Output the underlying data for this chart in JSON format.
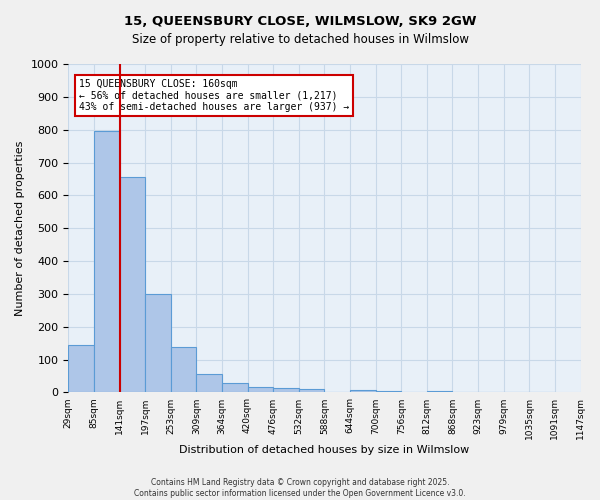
{
  "title": "15, QUEENSBURY CLOSE, WILMSLOW, SK9 2GW",
  "subtitle": "Size of property relative to detached houses in Wilmslow",
  "xlabel": "Distribution of detached houses by size in Wilmslow",
  "ylabel": "Number of detached properties",
  "bar_values": [
    143,
    795,
    655,
    300,
    138,
    55,
    30,
    18,
    15,
    12,
    0,
    8,
    5,
    0,
    5,
    0,
    0,
    0,
    0
  ],
  "bin_labels": [
    "29sqm",
    "85sqm",
    "141sqm",
    "197sqm",
    "253sqm",
    "309sqm",
    "364sqm",
    "420sqm",
    "476sqm",
    "532sqm",
    "588sqm",
    "644sqm",
    "700sqm",
    "756sqm",
    "812sqm",
    "868sqm",
    "923sqm",
    "979sqm",
    "1035sqm",
    "1091sqm",
    "1147sqm"
  ],
  "bar_color": "#aec6e8",
  "bar_edge_color": "#5b9bd5",
  "annotation_line1": "15 QUEENSBURY CLOSE: 160sqm",
  "annotation_line2": "← 56% of detached houses are smaller (1,217)",
  "annotation_line3": "43% of semi-detached houses are larger (937) →",
  "annotation_box_color": "#ffffff",
  "annotation_box_edge_color": "#cc0000",
  "vline_x": 2.0,
  "vline_color": "#cc0000",
  "ylim": [
    0,
    1000
  ],
  "yticks": [
    0,
    100,
    200,
    300,
    400,
    500,
    600,
    700,
    800,
    900,
    1000
  ],
  "grid_color": "#c8d8e8",
  "bg_color": "#e8f0f8",
  "footer_line1": "Contains HM Land Registry data © Crown copyright and database right 2025.",
  "footer_line2": "Contains public sector information licensed under the Open Government Licence v3.0."
}
